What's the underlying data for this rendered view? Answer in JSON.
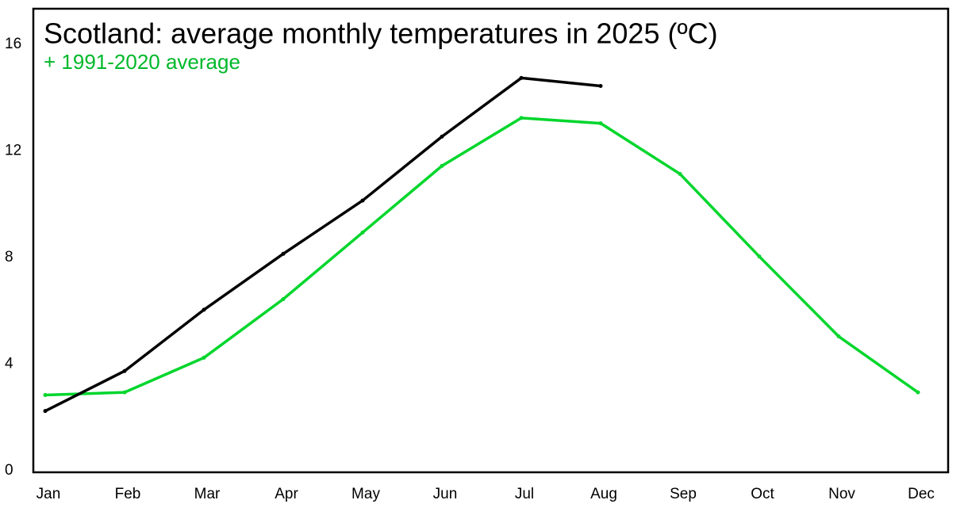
{
  "chart_data": {
    "type": "line",
    "title": "Scotland: average monthly temperatures in 2025 (ºC)",
    "categories": [
      "Jan",
      "Feb",
      "Mar",
      "Apr",
      "May",
      "Jun",
      "Jul",
      "Aug",
      "Sep",
      "Oct",
      "Nov",
      "Dec"
    ],
    "series": [
      {
        "color": "#000000",
        "values": [
          2.3,
          3.8,
          6.1,
          8.2,
          10.2,
          12.6,
          14.8,
          14.5,
          null,
          null,
          null,
          null
        ]
      },
      {
        "name": "+ 1991-2020 average",
        "color": "#00d62c",
        "values": [
          2.9,
          3.0,
          4.3,
          6.5,
          9.0,
          11.5,
          13.3,
          13.1,
          11.2,
          8.1,
          5.1,
          3.0
        ]
      }
    ],
    "ylim": [
      0,
      17.4
    ],
    "yticks": [
      0,
      4,
      8,
      12,
      16
    ],
    "grid": false
  }
}
